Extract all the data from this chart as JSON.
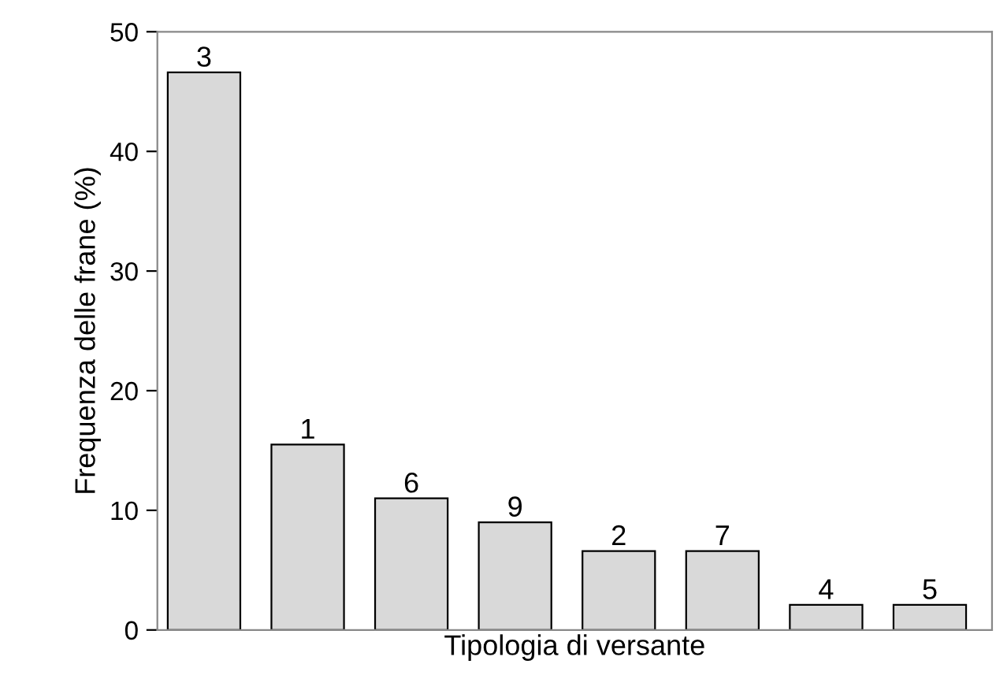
{
  "chart_data": {
    "type": "bar",
    "xlabel": "Tipologia di versante",
    "ylabel": "Frequenza delle frane (%)",
    "categories": [
      "3",
      "1",
      "6",
      "9",
      "2",
      "7",
      "4",
      "5"
    ],
    "values": [
      46.6,
      15.5,
      11.0,
      9.0,
      6.6,
      6.6,
      2.1,
      2.1
    ],
    "color": "#d9d9d9",
    "ylim": [
      0,
      50
    ],
    "yticks": [
      0,
      10,
      20,
      30,
      40,
      50
    ],
    "tick_labels": "y",
    "grid": false,
    "legend": false
  }
}
